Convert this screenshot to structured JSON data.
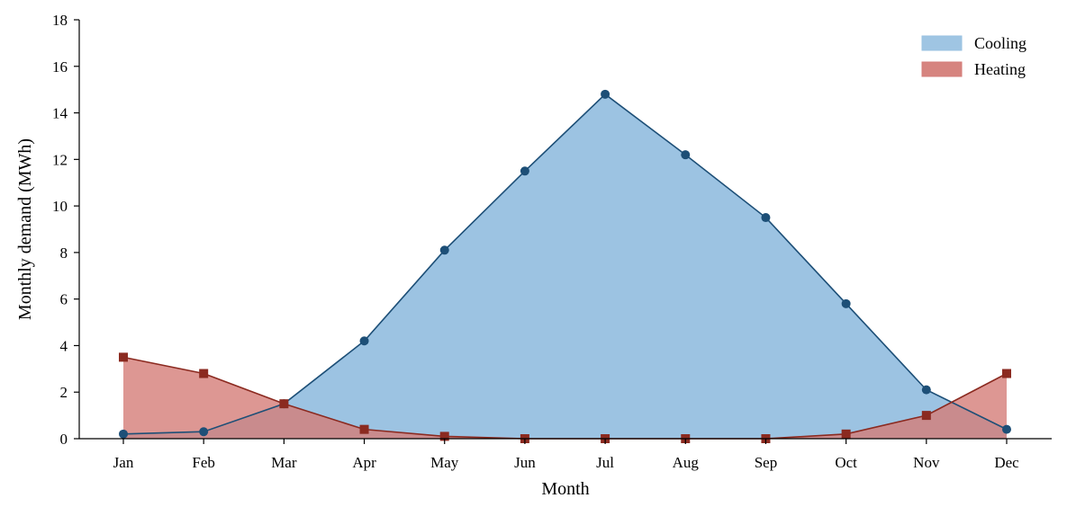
{
  "chart_data": {
    "type": "area",
    "title": "",
    "xlabel": "Month",
    "ylabel": "Monthly demand (MWh)",
    "categories": [
      "Jan",
      "Feb",
      "Mar",
      "Apr",
      "May",
      "Jun",
      "Jul",
      "Aug",
      "Sep",
      "Oct",
      "Nov",
      "Dec"
    ],
    "ylim": [
      0,
      18
    ],
    "yticks": [
      0,
      2,
      4,
      6,
      8,
      10,
      12,
      14,
      16,
      18
    ],
    "ytick_labels": [
      "0",
      "2",
      "4",
      "6",
      "8",
      "10",
      "12",
      "14",
      "16",
      "18"
    ],
    "grid": false,
    "legend_position": "top-right",
    "series": [
      {
        "name": "Cooling",
        "values": [
          0.2,
          0.3,
          1.5,
          4.2,
          8.1,
          11.5,
          14.8,
          12.2,
          9.5,
          5.8,
          2.1,
          0.4
        ],
        "fill_color": "#9ac2e1",
        "line_color": "#1d4f77",
        "marker": "circle"
      },
      {
        "name": "Heating",
        "values": [
          3.5,
          2.8,
          1.5,
          0.4,
          0.1,
          0.0,
          0.0,
          0.0,
          0.0,
          0.2,
          1.0,
          2.8
        ],
        "fill_color": "#d47d78",
        "line_color": "#8b2a20",
        "marker": "square"
      }
    ]
  }
}
